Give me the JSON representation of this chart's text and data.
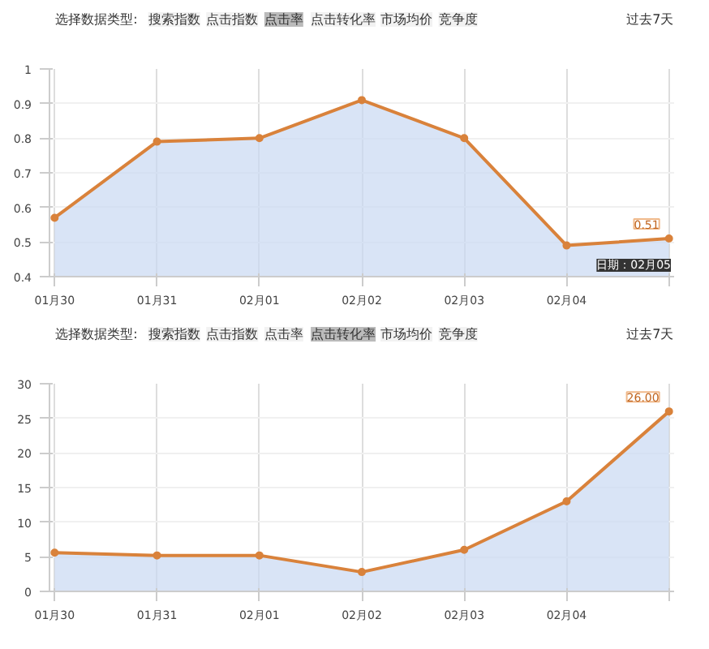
{
  "chart_data": [
    {
      "type": "area",
      "annotations": [
        "选择数据类型:",
        "搜索指数",
        "点击指数",
        "点击率",
        "点击转化率",
        "市场均价",
        "竞争度",
        "过去7天",
        "0.51",
        "日期：02月05"
      ],
      "categories": [
        "01月30",
        "01月31",
        "02月01",
        "02月02",
        "02月03",
        "02月04",
        null
      ],
      "series": [
        {
          "color": "#d9823b",
          "values": [
            0.57,
            0.79,
            0.8,
            0.91,
            0.8,
            0.49,
            0.51
          ]
        }
      ],
      "ylim": [
        0.4,
        1
      ],
      "yticks": [
        0.4,
        0.5,
        0.6,
        0.7,
        0.8,
        0.9,
        1
      ],
      "grid": true,
      "marker": "circle",
      "line_style": "solid"
    },
    {
      "type": "area",
      "annotations": [
        "选择数据类型:",
        "搜索指数",
        "点击指数",
        "点击率",
        "点击转化率",
        "市场均价",
        "竞争度",
        "过去7天",
        "26.00"
      ],
      "categories": [
        "01月30",
        "01月31",
        "02月01",
        "02月02",
        "02月03",
        "02月04",
        null
      ],
      "series": [
        {
          "color": "#d9823b",
          "values": [
            5.6,
            5.2,
            5.2,
            2.8,
            6.0,
            13,
            26
          ]
        }
      ],
      "ylim": [
        0,
        30
      ],
      "yticks": [
        0,
        5,
        10,
        15,
        20,
        25,
        30
      ],
      "grid": true,
      "marker": "circle",
      "line_style": "solid"
    }
  ]
}
